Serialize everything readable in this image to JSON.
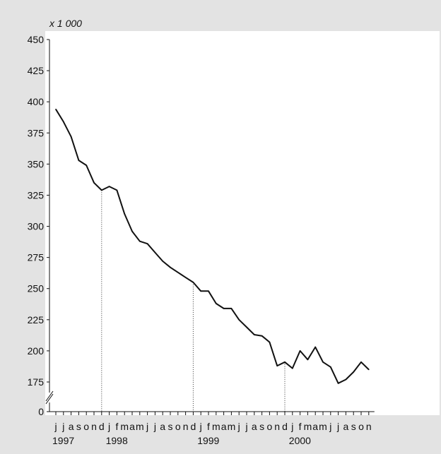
{
  "chart_data": {
    "type": "line",
    "unit_label": "x 1 000",
    "title": "",
    "xlabel": "",
    "ylabel": "",
    "ylim": [
      150,
      450
    ],
    "y_axis_break": {
      "from": 0,
      "to": 160
    },
    "yticks": [
      "0",
      "175",
      "200",
      "225",
      "250",
      "275",
      "300",
      "325",
      "350",
      "375",
      "400",
      "425",
      "450"
    ],
    "x_month_labels": [
      "j",
      "j",
      "a",
      "s",
      "o",
      "n",
      "d",
      "j",
      "f",
      "m",
      "a",
      "m",
      "j",
      "j",
      "a",
      "s",
      "o",
      "n",
      "d",
      "j",
      "f",
      "m",
      "a",
      "m",
      "j",
      "j",
      "a",
      "s",
      "o",
      "n",
      "d",
      "j",
      "f",
      "m",
      "a",
      "m",
      "j",
      "j",
      "a",
      "s",
      "o",
      "n"
    ],
    "years": [
      {
        "label": "1997",
        "start_index": 0
      },
      {
        "label": "1998",
        "start_index": 7
      },
      {
        "label": "1999",
        "start_index": 19
      },
      {
        "label": "2000",
        "start_index": 31
      }
    ],
    "year_separators_after_index": [
      6,
      18,
      30
    ],
    "series": [
      {
        "values": [
          394,
          384,
          372,
          353,
          349,
          335,
          329,
          332,
          329,
          310,
          296,
          288,
          286,
          279,
          272,
          267,
          263,
          259,
          255,
          248,
          248,
          238,
          234,
          234,
          225,
          219,
          213,
          212,
          207,
          188,
          191,
          186,
          200,
          193,
          203,
          191,
          187,
          174,
          177,
          183,
          191,
          185
        ]
      }
    ],
    "grid": false,
    "colors": {
      "background": "#e3e3e3",
      "plot_background": "#ffffff",
      "line": "#111111"
    }
  }
}
